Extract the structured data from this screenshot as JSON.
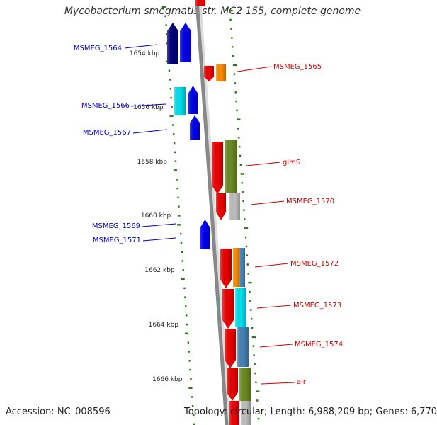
{
  "title": "Mycobacterium smegmatis str. MC2 155, complete genome",
  "footer": {
    "accession": "Accession: NC_008596",
    "summary": "Topology: circular; Length: 6,988,209 bp; Genes: 6,770"
  },
  "colors": {
    "backbone": "#888888",
    "ticks": "#2a7a1a",
    "left_label": "#0000cc",
    "right_label": "#cc0000",
    "navy": "#00007a",
    "blue": "#0000ee",
    "cyan": "#00e0ee",
    "red": "#ee0000",
    "orange": "#ff8c00",
    "olive": "#6b8c23",
    "grey": "#c0c0c0",
    "steel": "#4682b4"
  },
  "scale_labels": [
    "1654 kbp",
    "1656 kbp",
    "1658 kbp",
    "1660 kbp",
    "1662 kbp",
    "1664 kbp",
    "1666 kbp"
  ],
  "genes_left": [
    "MSMEG_1564",
    "MSMEG_1566",
    "MSMEG_1567",
    "MSMEG_1569",
    "MSMEG_1571"
  ],
  "genes_right": [
    "MSMEG_1565",
    "glmS",
    "MSMEG_1570",
    "MSMEG_1572",
    "MSMEG_1573",
    "MSMEG_1574",
    "alr"
  ]
}
